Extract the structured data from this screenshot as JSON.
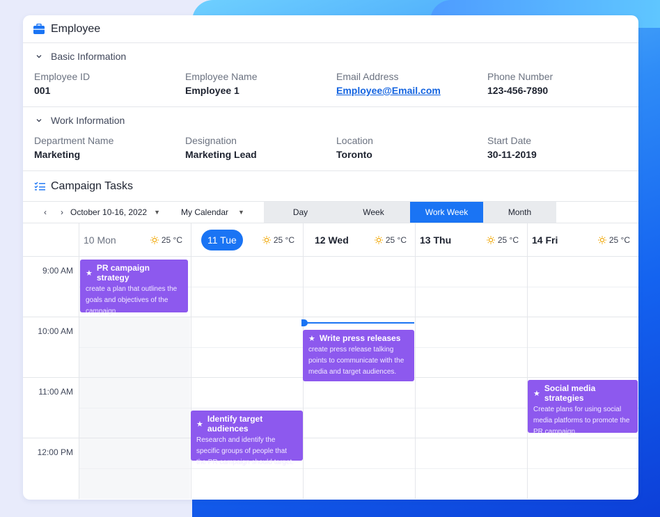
{
  "employee_card": {
    "title": "Employee",
    "basic_section": {
      "heading": "Basic Information",
      "fields": [
        {
          "label": "Employee ID",
          "value": "001"
        },
        {
          "label": "Employee Name",
          "value": "Employee 1"
        },
        {
          "label": "Email Address",
          "value": "Employee@Email.com"
        },
        {
          "label": "Phone Number",
          "value": "123-456-7890"
        }
      ]
    },
    "work_section": {
      "heading": "Work Information",
      "fields": [
        {
          "label": "Department Name",
          "value": "Marketing"
        },
        {
          "label": "Designation",
          "value": "Marketing Lead"
        },
        {
          "label": "Location",
          "value": "Toronto"
        },
        {
          "label": "Start Date",
          "value": "30-11-2019"
        }
      ]
    }
  },
  "tasks": {
    "heading": "Campaign Tasks",
    "toolbar": {
      "prev_icon": "‹",
      "next_icon": "›",
      "date_range": "October 10-16, 2022",
      "calendar_select": "My Calendar",
      "views": [
        "Day",
        "Week",
        "Work Week",
        "Month"
      ],
      "active_view": "Work Week"
    },
    "days": [
      {
        "label": "10 Mon",
        "temp": "25 °C"
      },
      {
        "label": "11 Tue",
        "temp": "25 °C"
      },
      {
        "label": "12 Wed",
        "temp": "25 °C"
      },
      {
        "label": "13 Thu",
        "temp": "25 °C"
      },
      {
        "label": "14 Fri",
        "temp": "25 °C"
      }
    ],
    "times": [
      "9:00 AM",
      "10:00 AM",
      "11:00 AM",
      "12:00 PM"
    ],
    "events": [
      {
        "title": "PR campaign strategy",
        "desc": "create a plan that outlines the goals and objectives of the campaign"
      },
      {
        "title": "Write press releases",
        "desc": "create press release talking points to communicate with the media and target audiences."
      },
      {
        "title": "Social media strategies",
        "desc": "Create plans for using social media platforms to promote the PR campaign."
      },
      {
        "title": "Identify target audiences",
        "desc": "Research and identify the specific groups of people that the PR campaign should target."
      }
    ]
  },
  "colors": {
    "accent": "#1a74f4",
    "event": "#8d59ee"
  }
}
